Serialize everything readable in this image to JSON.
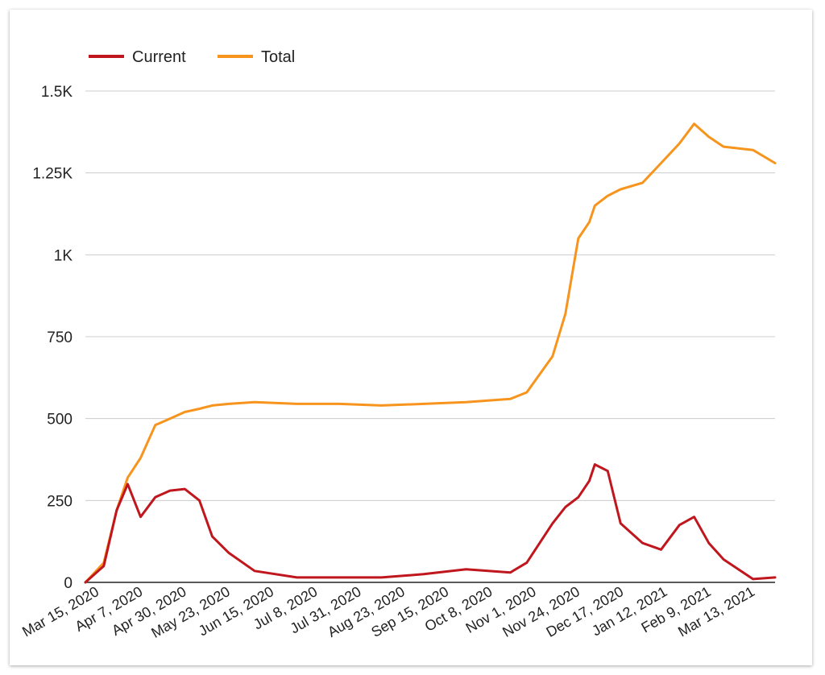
{
  "chart_data": {
    "type": "line",
    "legend_position": "top-left",
    "grid": true,
    "xlabel": "",
    "ylabel": "",
    "ylim": [
      0,
      1500
    ],
    "yticks": [
      {
        "value": 0,
        "label": "0"
      },
      {
        "value": 250,
        "label": "250"
      },
      {
        "value": 500,
        "label": "500"
      },
      {
        "value": 750,
        "label": "750"
      },
      {
        "value": 1000,
        "label": "1K"
      },
      {
        "value": 1250,
        "label": "1.25K"
      },
      {
        "value": 1500,
        "label": "1.5K"
      }
    ],
    "xticks": [
      "Mar 15, 2020",
      "Apr 7, 2020",
      "Apr 30, 2020",
      "May 23, 2020",
      "Jun 15, 2020",
      "Jul 8, 2020",
      "Jul 31, 2020",
      "Aug 23, 2020",
      "Sep 15, 2020",
      "Oct 8, 2020",
      "Nov 1, 2020",
      "Nov 24, 2020",
      "Dec 17, 2020",
      "Jan 12, 2021",
      "Feb 9, 2021",
      "Mar 13, 2021"
    ],
    "x": [
      "2020-03-15",
      "2020-03-25",
      "2020-04-01",
      "2020-04-07",
      "2020-04-14",
      "2020-04-22",
      "2020-04-30",
      "2020-05-08",
      "2020-05-16",
      "2020-05-23",
      "2020-06-01",
      "2020-06-15",
      "2020-07-08",
      "2020-07-31",
      "2020-08-23",
      "2020-09-15",
      "2020-10-08",
      "2020-11-01",
      "2020-11-10",
      "2020-11-24",
      "2020-12-01",
      "2020-12-08",
      "2020-12-14",
      "2020-12-17",
      "2020-12-24",
      "2020-12-31",
      "2021-01-12",
      "2021-01-22",
      "2021-02-01",
      "2021-02-09",
      "2021-02-17",
      "2021-02-25",
      "2021-03-13",
      "2021-03-25"
    ],
    "series": [
      {
        "name": "Current",
        "color": "#c0161d",
        "values": [
          0,
          50,
          220,
          300,
          200,
          260,
          280,
          285,
          250,
          140,
          90,
          35,
          15,
          15,
          15,
          25,
          40,
          30,
          60,
          180,
          230,
          260,
          310,
          360,
          340,
          180,
          120,
          100,
          175,
          200,
          120,
          70,
          10,
          15
        ]
      },
      {
        "name": "Total",
        "color": "#f7941d",
        "values": [
          0,
          60,
          220,
          320,
          380,
          480,
          500,
          520,
          530,
          540,
          545,
          550,
          545,
          545,
          540,
          545,
          550,
          560,
          580,
          690,
          820,
          1050,
          1100,
          1150,
          1180,
          1200,
          1220,
          1280,
          1340,
          1400,
          1360,
          1330,
          1320,
          1280
        ]
      }
    ]
  }
}
